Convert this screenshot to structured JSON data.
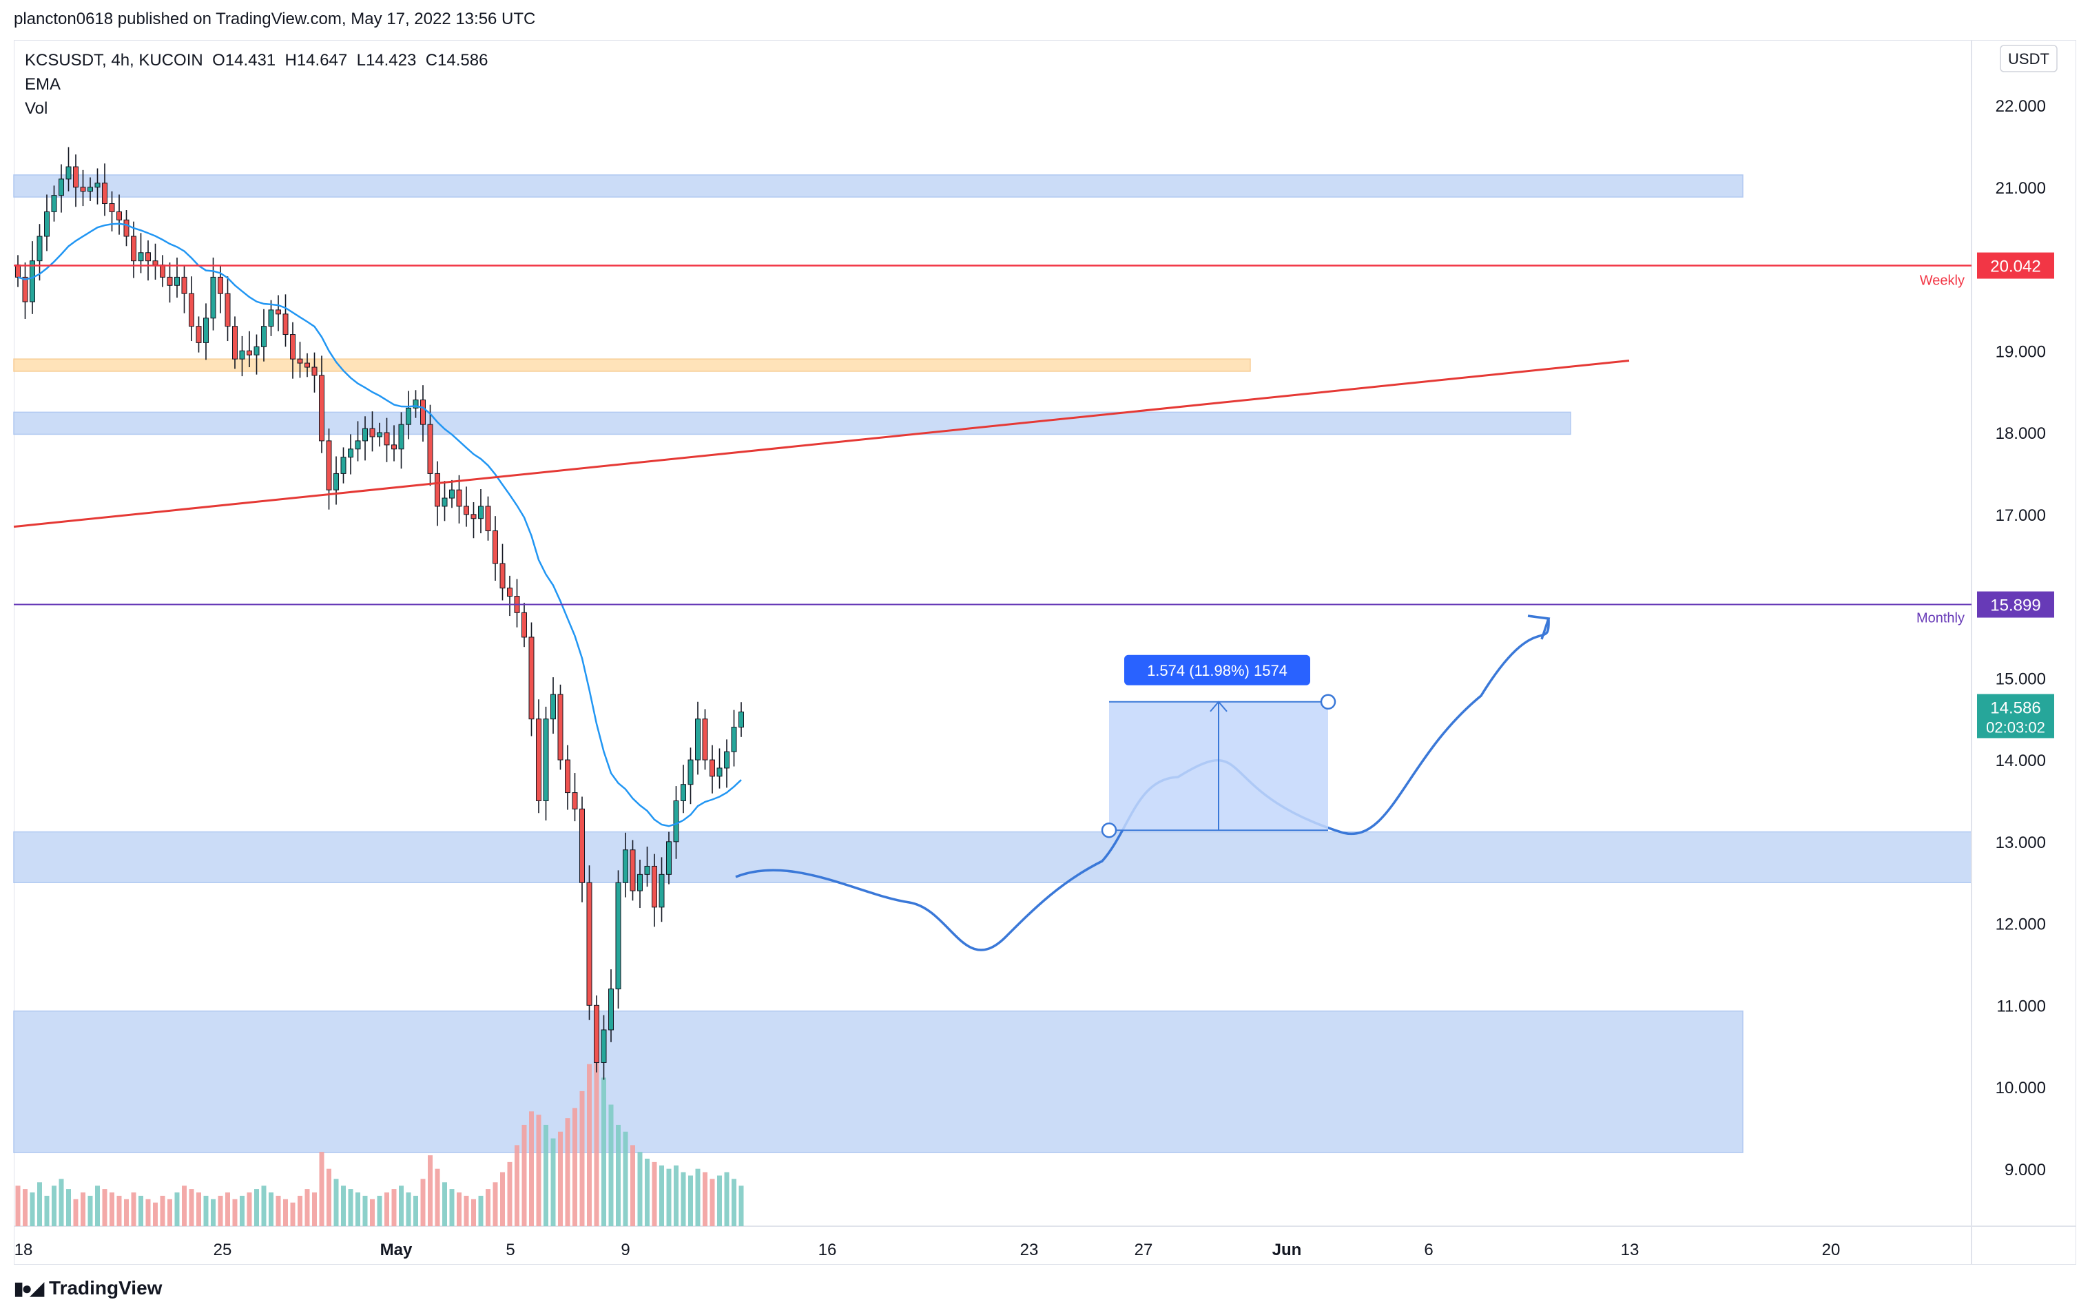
{
  "header": {
    "published_by": "plancton0618 published on TradingView.com, May 17, 2022 13:56 UTC"
  },
  "legend": {
    "symbol": "KCSUSDT, 4h, KUCOIN",
    "open": "O14.431",
    "high": "H14.647",
    "low": "L14.423",
    "close": "C14.586",
    "indicator1": "EMA",
    "indicator2": "Vol"
  },
  "currency_label": "USDT",
  "footer": {
    "brand": "TradingView"
  },
  "colors": {
    "up": "#26a69a",
    "down": "#ef5350",
    "ema": "#2196f3",
    "zone_blue": "#c6d9f7",
    "zone_orange": "#ffe0b2",
    "weekly": "#f23645",
    "monthly": "#673ab7",
    "path": "#3a78d8",
    "price_tag": "#26a69a",
    "measure": "#2962ff"
  },
  "chart_data": {
    "type": "candlestick",
    "ylim": [
      8.3,
      22.8
    ],
    "y_ticks": [
      "22.000",
      "21.000",
      "19.000",
      "18.000",
      "17.000",
      "15.000",
      "14.000",
      "13.000",
      "12.000",
      "11.000",
      "10.000",
      "9.000"
    ],
    "x_ticks": [
      "18",
      "25",
      "May",
      "5",
      "9",
      "16",
      "23",
      "27",
      "Jun",
      "6",
      "13",
      "20"
    ],
    "horizontal_levels": [
      {
        "name": "Weekly",
        "price": 20.042,
        "label": "20.042"
      },
      {
        "name": "Monthly",
        "price": 15.899,
        "label": "15.899"
      }
    ],
    "last_price": {
      "value": "14.586",
      "countdown": "02:03:02"
    },
    "zones": [
      {
        "color": "blue",
        "low": 20.88,
        "high": 21.15
      },
      {
        "color": "orange",
        "low": 18.75,
        "high": 18.9
      },
      {
        "color": "blue",
        "low": 17.98,
        "high": 18.25
      },
      {
        "color": "blue",
        "low": 12.5,
        "high": 13.12
      },
      {
        "color": "blue",
        "low": 9.2,
        "high": 10.93
      }
    ],
    "measure": {
      "label": "1.574 (11.98%) 1574",
      "from": 13.14,
      "to": 14.71
    },
    "closes": [
      19.9,
      19.6,
      20.1,
      20.4,
      20.7,
      20.9,
      21.1,
      21.25,
      21.0,
      20.95,
      21.0,
      21.05,
      20.8,
      20.7,
      20.6,
      20.4,
      20.1,
      20.2,
      20.1,
      20.05,
      19.9,
      19.8,
      19.9,
      19.7,
      19.3,
      19.1,
      19.4,
      19.9,
      19.7,
      19.3,
      18.9,
      19.0,
      18.95,
      19.05,
      19.3,
      19.5,
      19.45,
      19.2,
      18.9,
      18.85,
      18.8,
      18.7,
      17.9,
      17.3,
      17.5,
      17.7,
      17.8,
      17.9,
      18.05,
      17.95,
      18.0,
      17.85,
      17.8,
      18.1,
      18.3,
      18.4,
      18.1,
      17.5,
      17.1,
      17.2,
      17.3,
      17.1,
      17.0,
      16.95,
      17.1,
      16.8,
      16.4,
      16.1,
      16.0,
      15.8,
      15.5,
      14.5,
      13.5,
      14.5,
      14.8,
      14.0,
      13.6,
      13.4,
      12.5,
      11.0,
      10.3,
      10.7,
      11.2,
      12.5,
      12.9,
      12.4,
      12.6,
      12.7,
      12.2,
      12.6,
      13.0,
      13.5,
      13.7,
      14.0,
      14.5,
      14.0,
      13.8,
      13.9,
      14.1,
      14.4,
      14.586
    ],
    "volumes": [
      60,
      55,
      50,
      65,
      45,
      60,
      70,
      55,
      40,
      50,
      45,
      60,
      55,
      50,
      45,
      40,
      50,
      45,
      40,
      35,
      45,
      40,
      50,
      60,
      55,
      50,
      45,
      40,
      45,
      50,
      40,
      45,
      50,
      55,
      60,
      50,
      45,
      40,
      35,
      45,
      55,
      50,
      110,
      85,
      70,
      60,
      55,
      50,
      45,
      40,
      45,
      50,
      55,
      60,
      50,
      45,
      70,
      105,
      85,
      65,
      55,
      50,
      45,
      40,
      45,
      55,
      65,
      80,
      95,
      120,
      150,
      170,
      165,
      150,
      130,
      140,
      160,
      175,
      200,
      240,
      255,
      220,
      180,
      150,
      140,
      120,
      110,
      100,
      95,
      90,
      85,
      90,
      80,
      75,
      85,
      80,
      70,
      75,
      80,
      70,
      60
    ]
  }
}
